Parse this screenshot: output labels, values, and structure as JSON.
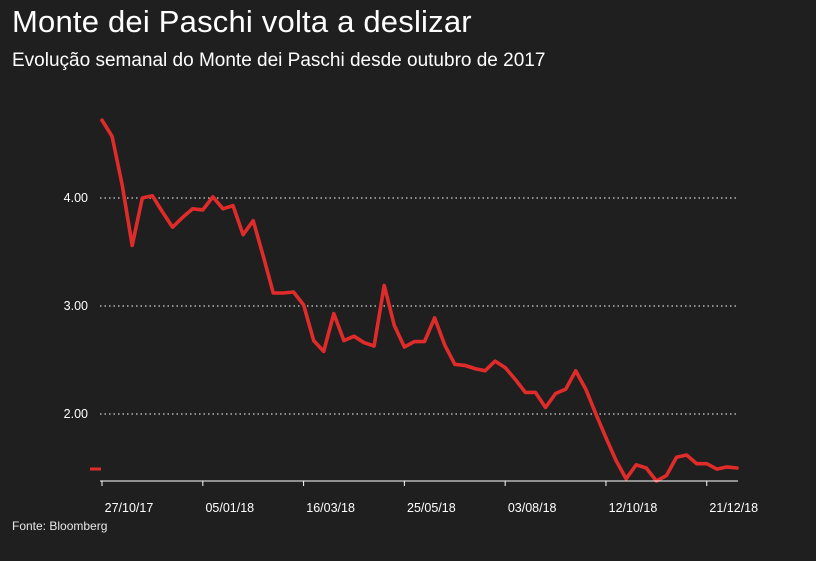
{
  "title": "Monte dei Paschi volta a deslizar",
  "subtitle": "Evolução semanal do Monte dei Paschi desde outubro de 2017",
  "source": "Fonte: Bloomberg",
  "colors": {
    "background": "#1f1f1f",
    "line": "#e02b2b",
    "text": "#ffffff",
    "grid": "#ffffff"
  },
  "chart_data": {
    "type": "line",
    "title": "Monte dei Paschi volta a deslizar",
    "subtitle": "Evolução semanal do Monte dei Paschi desde outubro de 2017",
    "xlabel": "",
    "ylabel": "",
    "ylim": [
      1.4,
      4.8
    ],
    "grid": true,
    "legend": "none",
    "y_ticks": [
      2,
      3,
      4
    ],
    "y_tick_labels": [
      "2.00",
      "3.00",
      "4.00"
    ],
    "x_tick_labels": [
      "27/10/17",
      "05/01/18",
      "16/03/18",
      "25/05/18",
      "03/08/18",
      "12/10/18",
      "21/12/18"
    ],
    "x_tick_index": [
      0,
      10,
      20,
      30,
      40,
      50,
      60
    ],
    "series": [
      {
        "name": "",
        "values": [
          4.72,
          4.57,
          4.12,
          3.56,
          4.0,
          4.02,
          3.87,
          3.73,
          3.82,
          3.9,
          3.89,
          4.01,
          3.9,
          3.93,
          3.66,
          3.79,
          3.46,
          3.12,
          3.12,
          3.13,
          3.01,
          2.68,
          2.58,
          2.93,
          2.68,
          2.72,
          2.66,
          2.63,
          3.19,
          2.82,
          2.62,
          2.67,
          2.67,
          2.89,
          2.64,
          2.46,
          2.45,
          2.42,
          2.4,
          2.49,
          2.43,
          2.32,
          2.2,
          2.2,
          2.06,
          2.19,
          2.23,
          2.4,
          2.23,
          2.0,
          1.78,
          1.57,
          1.4,
          1.53,
          1.5,
          1.38,
          1.43,
          1.6,
          1.62,
          1.54,
          1.54,
          1.49,
          1.51,
          1.5
        ]
      }
    ]
  }
}
